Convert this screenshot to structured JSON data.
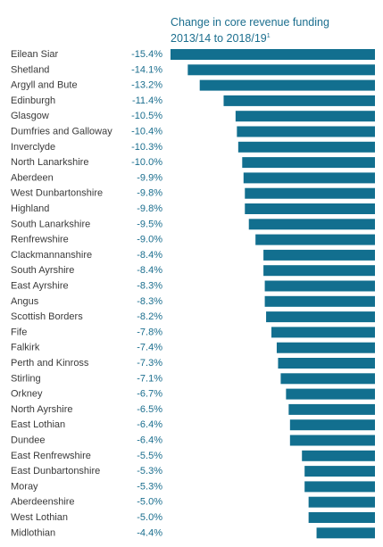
{
  "chart_data": {
    "type": "bar",
    "orientation": "horizontal",
    "title_line1": "Change in core revenue funding",
    "title_line2": "2013/14 to 2018/19",
    "title_footnote": "1",
    "bar_color": "#126f8f",
    "value_label_color": "#1b6e8e",
    "xlim": [
      -15.4,
      0
    ],
    "categories": [
      "Eilean Siar",
      "Shetland",
      "Argyll and Bute",
      "Edinburgh",
      "Glasgow",
      "Dumfries and Galloway",
      "Inverclyde",
      "North Lanarkshire",
      "Aberdeen",
      "West Dunbartonshire",
      "Highland",
      "South Lanarkshire",
      "Renfrewshire",
      "Clackmannanshire",
      "South Ayrshire",
      "East Ayrshire",
      "Angus",
      "Scottish Borders",
      "Fife",
      "Falkirk",
      "Perth and Kinross",
      "Stirling",
      "Orkney",
      "North Ayrshire",
      "East Lothian",
      "Dundee",
      "East Renfrewshire",
      "East Dunbartonshire",
      "Moray",
      "Aberdeenshire",
      "West Lothian",
      "Midlothian"
    ],
    "values": [
      -15.4,
      -14.1,
      -13.2,
      -11.4,
      -10.5,
      -10.4,
      -10.3,
      -10.0,
      -9.9,
      -9.8,
      -9.8,
      -9.5,
      -9.0,
      -8.4,
      -8.4,
      -8.3,
      -8.3,
      -8.2,
      -7.8,
      -7.4,
      -7.3,
      -7.1,
      -6.7,
      -6.5,
      -6.4,
      -6.4,
      -5.5,
      -5.3,
      -5.3,
      -5.0,
      -5.0,
      -4.4
    ],
    "value_labels": [
      "-15.4%",
      "-14.1%",
      "-13.2%",
      "-11.4%",
      "-10.5%",
      "-10.4%",
      "-10.3%",
      "-10.0%",
      "-9.9%",
      "-9.8%",
      "-9.8%",
      "-9.5%",
      "-9.0%",
      "-8.4%",
      "-8.4%",
      "-8.3%",
      "-8.3%",
      "-8.2%",
      "-7.8%",
      "-7.4%",
      "-7.3%",
      "-7.1%",
      "-6.7%",
      "-6.5%",
      "-6.4%",
      "-6.4%",
      "-5.5%",
      "-5.3%",
      "-5.3%",
      "-5.0%",
      "-5.0%",
      "-4.4%"
    ],
    "grid": false,
    "legend": "none"
  }
}
